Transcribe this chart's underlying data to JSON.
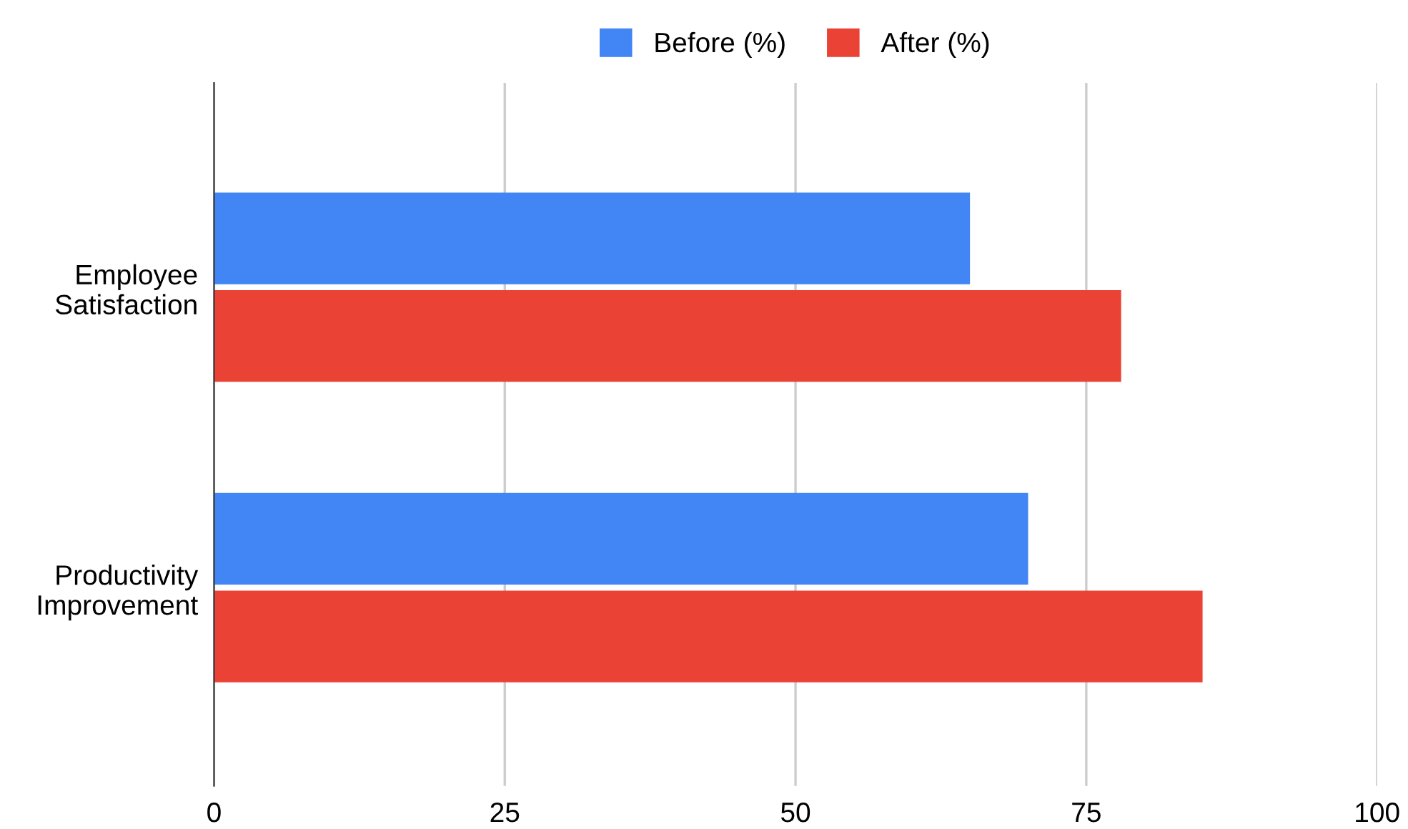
{
  "chart_data": {
    "type": "bar",
    "orientation": "horizontal",
    "categories": [
      "Employee\nSatisfaction",
      "Productivity\nImprovement"
    ],
    "series": [
      {
        "name": "Before (%)",
        "color": "#4285f4",
        "values": [
          65,
          70
        ]
      },
      {
        "name": "After (%)",
        "color": "#ea4335",
        "values": [
          78,
          85
        ]
      }
    ],
    "xlim": [
      0,
      100
    ],
    "xticks": [
      0,
      25,
      50,
      75,
      100
    ],
    "grid": "x",
    "legend": "top"
  }
}
